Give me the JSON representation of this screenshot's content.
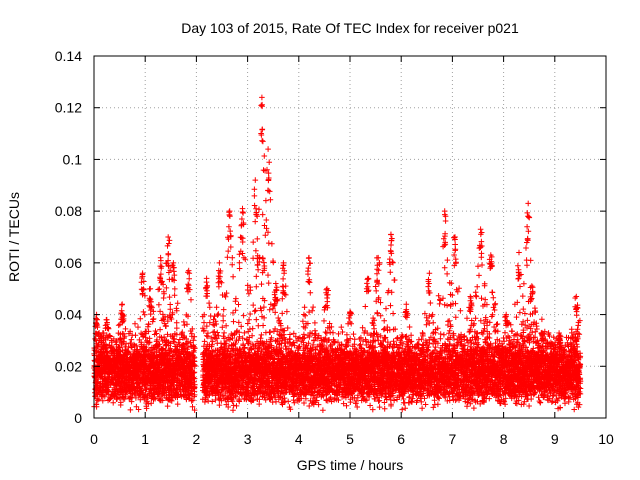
{
  "chart_data": {
    "type": "scatter",
    "title": "Day 103 of 2015, Rate Of TEC Index for receiver p021",
    "xlabel": "GPS time / hours",
    "ylabel": "ROTI / TECUs",
    "xlim": [
      0,
      10
    ],
    "ylim": [
      0,
      0.14
    ],
    "x_ticks": [
      "0",
      "1",
      "2",
      "3",
      "4",
      "5",
      "6",
      "7",
      "8",
      "9",
      "10"
    ],
    "y_ticks": [
      "0",
      "0.02",
      "0.04",
      "0.06",
      "0.08",
      "0.1",
      "0.12",
      "0.14"
    ],
    "grid": true,
    "marker": "+",
    "colors": {
      "series": "#ff0000",
      "grid": "#a0a0a0",
      "axes": "#000000"
    },
    "series": [
      {
        "name": "ROTI",
        "x_start": 0,
        "x_end": 9.5,
        "gap": [
          1.97,
          2.12
        ],
        "baseline": 0.017,
        "spread": 0.008,
        "bursts": [
          {
            "x": 0.05,
            "y": 0.04
          },
          {
            "x": 0.25,
            "y": 0.038
          },
          {
            "x": 0.55,
            "y": 0.044
          },
          {
            "x": 0.95,
            "y": 0.056
          },
          {
            "x": 1.1,
            "y": 0.05
          },
          {
            "x": 1.3,
            "y": 0.062
          },
          {
            "x": 1.45,
            "y": 0.07
          },
          {
            "x": 1.55,
            "y": 0.06
          },
          {
            "x": 1.85,
            "y": 0.057
          },
          {
            "x": 2.2,
            "y": 0.054
          },
          {
            "x": 2.45,
            "y": 0.06
          },
          {
            "x": 2.65,
            "y": 0.08
          },
          {
            "x": 2.9,
            "y": 0.081
          },
          {
            "x": 3.15,
            "y": 0.092
          },
          {
            "x": 3.28,
            "y": 0.124
          },
          {
            "x": 3.4,
            "y": 0.104
          },
          {
            "x": 3.55,
            "y": 0.052
          },
          {
            "x": 3.7,
            "y": 0.06
          },
          {
            "x": 4.2,
            "y": 0.062
          },
          {
            "x": 4.55,
            "y": 0.05
          },
          {
            "x": 5.0,
            "y": 0.041
          },
          {
            "x": 5.35,
            "y": 0.054
          },
          {
            "x": 5.55,
            "y": 0.062
          },
          {
            "x": 5.8,
            "y": 0.071
          },
          {
            "x": 6.1,
            "y": 0.044
          },
          {
            "x": 6.55,
            "y": 0.056
          },
          {
            "x": 6.85,
            "y": 0.08
          },
          {
            "x": 7.05,
            "y": 0.07
          },
          {
            "x": 7.35,
            "y": 0.047
          },
          {
            "x": 7.55,
            "y": 0.073
          },
          {
            "x": 7.75,
            "y": 0.063
          },
          {
            "x": 8.05,
            "y": 0.04
          },
          {
            "x": 8.3,
            "y": 0.064
          },
          {
            "x": 8.48,
            "y": 0.083
          },
          {
            "x": 8.55,
            "y": 0.051
          },
          {
            "x": 8.75,
            "y": 0.033
          },
          {
            "x": 9.1,
            "y": 0.032
          },
          {
            "x": 9.42,
            "y": 0.047
          }
        ]
      }
    ]
  }
}
